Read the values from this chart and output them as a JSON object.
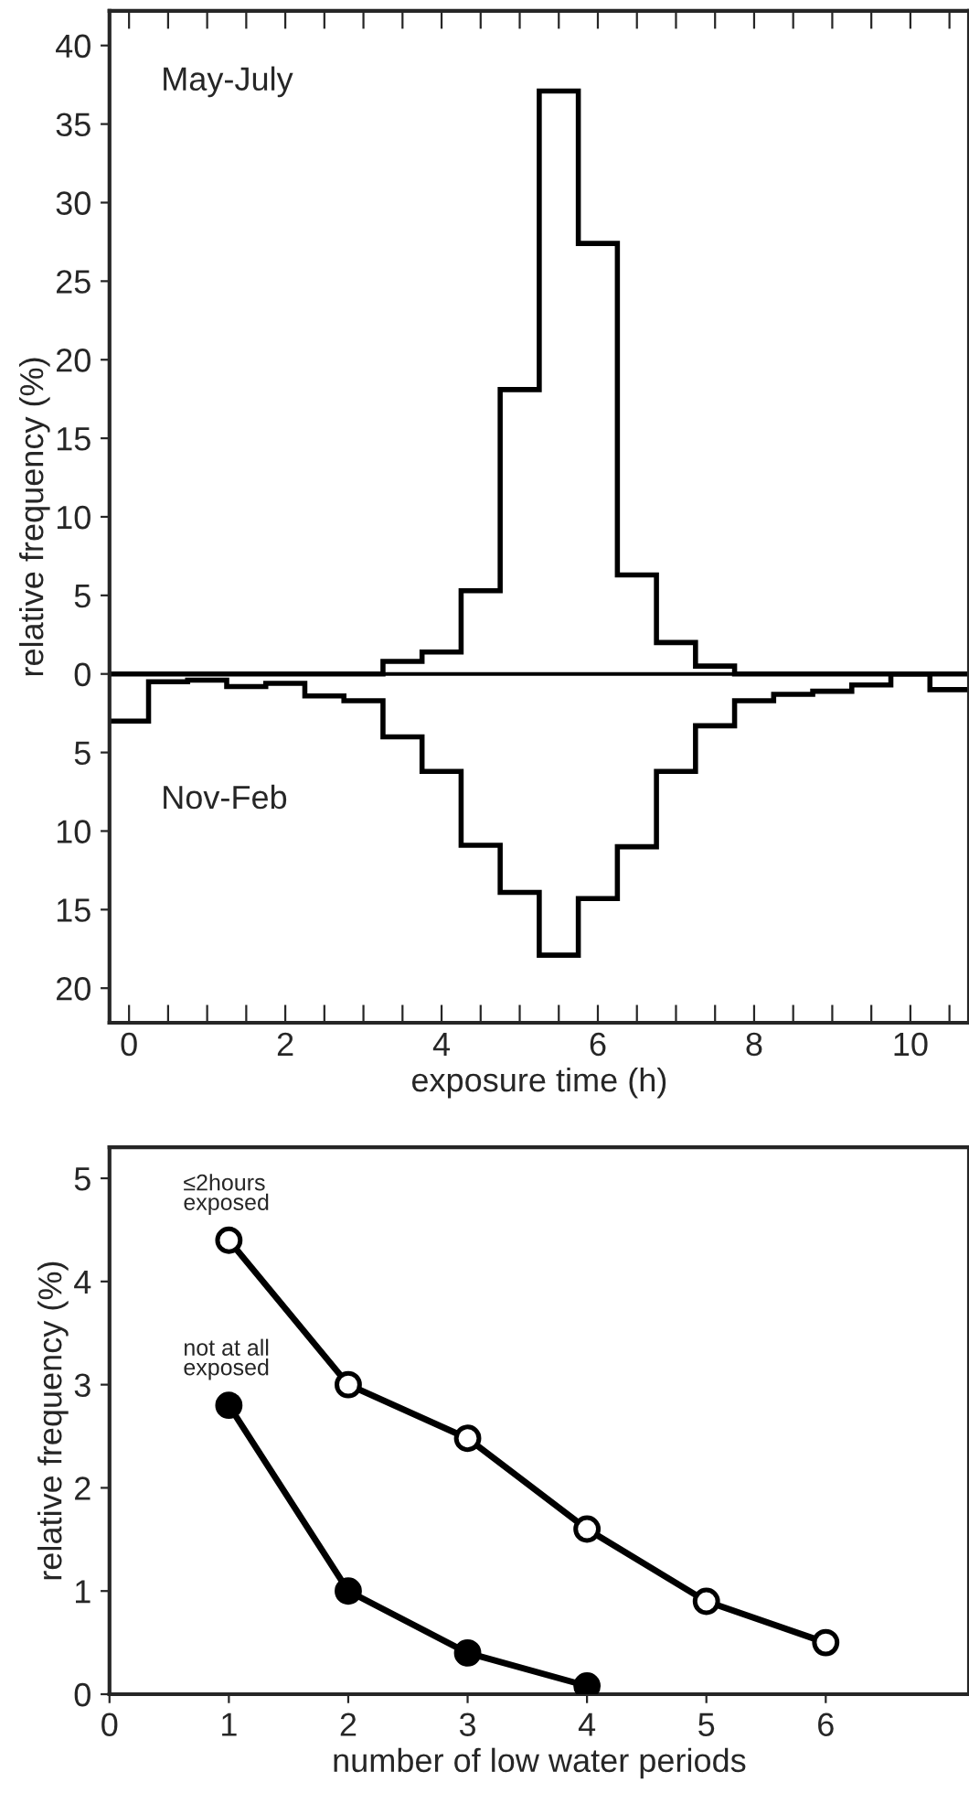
{
  "chart_data": [
    {
      "type": "histogram",
      "xlabel": "exposure time (h)",
      "ylabel": "relative frequency (%)",
      "bins": [
        -0.25,
        0.25,
        0.75,
        1.25,
        1.75,
        2.25,
        2.75,
        3.25,
        3.75,
        4.25,
        4.75,
        5.25,
        5.75,
        6.25,
        6.75,
        7.25,
        7.75,
        8.25,
        8.75,
        9.25,
        9.75,
        10.25,
        10.75
      ],
      "series": [
        {
          "color": "#000000",
          "values": [
            0,
            0,
            0,
            0,
            0,
            0,
            0,
            0.8,
            1.4,
            5.3,
            18.1,
            37.1,
            27.4,
            6.3,
            2.0,
            0.5,
            0,
            0,
            0,
            0,
            0,
            0
          ]
        },
        {
          "color": "#000000",
          "values": [
            -3.0,
            -0.5,
            -0.4,
            -0.8,
            -0.6,
            -1.4,
            -1.7,
            -4.0,
            -6.2,
            -10.9,
            -13.9,
            -17.9,
            -14.3,
            -11.0,
            -6.2,
            -3.3,
            -1.7,
            -1.3,
            -1.1,
            -0.7,
            0,
            -1.0
          ]
        }
      ],
      "xlim": [
        -0.25,
        10.75
      ],
      "xticks": [
        0,
        {
          "value": 0.5,
          "label": null
        },
        {
          "value": 1,
          "label": null
        },
        {
          "value": 1.5,
          "label": null
        },
        2,
        {
          "value": 2.5,
          "label": null
        },
        {
          "value": 3,
          "label": null
        },
        {
          "value": 3.5,
          "label": null
        },
        4,
        {
          "value": 4.5,
          "label": null
        },
        {
          "value": 5,
          "label": null
        },
        {
          "value": 5.5,
          "label": null
        },
        6,
        {
          "value": 6.5,
          "label": null
        },
        {
          "value": 7,
          "label": null
        },
        {
          "value": 7.5,
          "label": null
        },
        8,
        {
          "value": 8.5,
          "label": null
        },
        {
          "value": 9,
          "label": null
        },
        {
          "value": 9.5,
          "label": null
        },
        10,
        {
          "value": 10.5,
          "label": null
        }
      ],
      "ylim": [
        -22.2,
        42.2
      ],
      "yticks": [
        {
          "value": -20,
          "label": "20"
        },
        {
          "value": -15,
          "label": "15"
        },
        {
          "value": -10,
          "label": "10"
        },
        {
          "value": -5,
          "label": "5"
        },
        0,
        5,
        10,
        15,
        20,
        25,
        30,
        35,
        40
      ],
      "annotations": [
        "May-July",
        "Nov-Feb"
      ],
      "ref_lines": [
        {
          "axis": "y",
          "value": 0,
          "label": null,
          "color": "#000000"
        }
      ],
      "grid": false,
      "legend": false
    },
    {
      "type": "line",
      "xlabel": "number of low water periods",
      "ylabel": "relative frequency (%)",
      "series": [
        {
          "name": "≤2hours\nexposed",
          "color": "#000000",
          "colors": [
            "#ffffff",
            "#ffffff",
            "#ffffff",
            "#ffffff",
            "#ffffff",
            "#ffffff"
          ],
          "x": [
            1,
            2,
            3,
            4,
            5,
            6
          ],
          "values": [
            4.4,
            3.0,
            2.48,
            1.6,
            0.9,
            0.5
          ]
        },
        {
          "name": "not at all\nexposed",
          "color": "#000000",
          "colors": [
            "#000000",
            "#000000",
            "#000000",
            "#000000"
          ],
          "x": [
            1,
            2,
            3,
            4
          ],
          "values": [
            2.8,
            1.0,
            0.4,
            0.08
          ]
        }
      ],
      "xlim": [
        0,
        7.2
      ],
      "xticks": [
        0,
        1,
        2,
        3,
        4,
        5,
        6
      ],
      "ylim": [
        0,
        5.3
      ],
      "yticks": [
        0,
        1,
        2,
        3,
        4,
        5
      ],
      "marker": "circle",
      "line_style": "solid",
      "grid": false,
      "legend": false
    }
  ]
}
